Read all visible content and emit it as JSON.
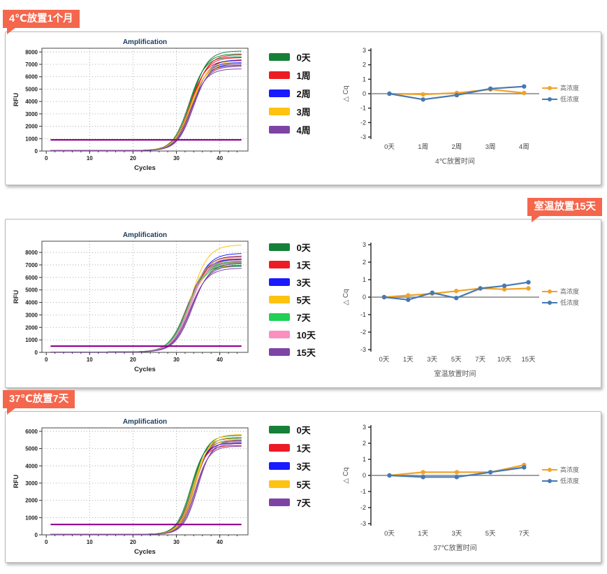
{
  "accent_color": "#f4674d",
  "panels": [
    {
      "badge": {
        "label": "4℃放置1个月",
        "side": "left"
      },
      "amp_chart_index": 0,
      "dcq_chart_index": 1,
      "amp_legend": [
        {
          "label": "0天",
          "color": "#168039"
        },
        {
          "label": "1周",
          "color": "#ed1c24"
        },
        {
          "label": "2周",
          "color": "#1a1aff"
        },
        {
          "label": "3周",
          "color": "#fec211"
        },
        {
          "label": "4周",
          "color": "#7d44a5"
        }
      ]
    },
    {
      "badge": {
        "label": "室温放置15天",
        "side": "right"
      },
      "amp_chart_index": 2,
      "dcq_chart_index": 3,
      "amp_legend": [
        {
          "label": "0天",
          "color": "#168039"
        },
        {
          "label": "1天",
          "color": "#ed1c24"
        },
        {
          "label": "3天",
          "color": "#1a1aff"
        },
        {
          "label": "5天",
          "color": "#fec211"
        },
        {
          "label": "7天",
          "color": "#1fd055"
        },
        {
          "label": "10天",
          "color": "#fa8fc0"
        },
        {
          "label": "15天",
          "color": "#7d44a5"
        }
      ]
    },
    {
      "badge": {
        "label": "37℃放置7天",
        "side": "left"
      },
      "amp_chart_index": 4,
      "dcq_chart_index": 5,
      "amp_legend": [
        {
          "label": "0天",
          "color": "#168039"
        },
        {
          "label": "1天",
          "color": "#ed1c24"
        },
        {
          "label": "3天",
          "color": "#1a1aff"
        },
        {
          "label": "5天",
          "color": "#fec211"
        },
        {
          "label": "7天",
          "color": "#7d44a5"
        }
      ]
    }
  ],
  "chart_data": [
    {
      "role": "amplification",
      "type": "line",
      "title": "Amplification",
      "xlabel": "Cycles",
      "ylabel": "RFU",
      "xlim": [
        -1,
        46.5
      ],
      "xticks": [
        0,
        10,
        20,
        30,
        40
      ],
      "ylim": [
        0,
        8300
      ],
      "yticks": [
        0,
        1000,
        2000,
        3000,
        4000,
        5000,
        6000,
        7000,
        8000
      ],
      "grid": "dashed",
      "baseline": 40,
      "k": 0.55,
      "threshold": {
        "value": 900,
        "color": "#91008f"
      },
      "series": [
        {
          "name": "0天",
          "color": "#168039",
          "midpoint": 33.2,
          "plateau": 7850
        },
        {
          "name": "1周",
          "color": "#ed1c24",
          "midpoint": 33.4,
          "plateau": 7550
        },
        {
          "name": "2周",
          "color": "#1a1aff",
          "midpoint": 33.5,
          "plateau": 7150
        },
        {
          "name": "3周",
          "color": "#fec211",
          "midpoint": 33.3,
          "plateau": 7050
        },
        {
          "name": "4周",
          "color": "#7d44a5",
          "midpoint": 33.6,
          "plateau": 6850
        }
      ]
    },
    {
      "role": "dcq",
      "type": "line",
      "title": "",
      "xlabel": "4℃放置时间",
      "ylabel": "△ Cq",
      "categories": [
        "0天",
        "1周",
        "2周",
        "3周",
        "4周"
      ],
      "ylim": [
        -3,
        3
      ],
      "yticks": [
        -3,
        -2,
        -1,
        0,
        1,
        2,
        3
      ],
      "legend_position": "right",
      "series": [
        {
          "name": "高浓度",
          "color": "#f0a32b",
          "values": [
            0,
            -0.05,
            0.05,
            0.3,
            0.05
          ]
        },
        {
          "name": "低浓度",
          "color": "#4679b2",
          "values": [
            0,
            -0.4,
            -0.1,
            0.35,
            0.5
          ]
        }
      ]
    },
    {
      "role": "amplification",
      "type": "line",
      "title": "Amplification",
      "xlabel": "Cycles",
      "ylabel": "RFU",
      "xlim": [
        -1,
        46.5
      ],
      "xticks": [
        0,
        10,
        20,
        30,
        40
      ],
      "ylim": [
        0,
        8900
      ],
      "yticks": [
        0,
        1000,
        2000,
        3000,
        4000,
        5000,
        6000,
        7000,
        8000
      ],
      "grid": "dashed",
      "baseline": 30,
      "k": 0.5,
      "threshold": {
        "value": 500,
        "color": "#91008f"
      },
      "series": [
        {
          "name": "0天",
          "color": "#168039",
          "midpoint": 32.6,
          "plateau": 7200
        },
        {
          "name": "1天",
          "color": "#ed1c24",
          "midpoint": 32.8,
          "plateau": 7500
        },
        {
          "name": "3天",
          "color": "#1a1aff",
          "midpoint": 33.0,
          "plateau": 7700
        },
        {
          "name": "5天",
          "color": "#fec211",
          "midpoint": 33.0,
          "plateau": 7900,
          "spread": [
            0.88,
            0.97,
            1.09
          ]
        },
        {
          "name": "7天",
          "color": "#1fd055",
          "midpoint": 32.7,
          "plateau": 7100
        },
        {
          "name": "10天",
          "color": "#fa8fc0",
          "midpoint": 33.1,
          "plateau": 7400
        },
        {
          "name": "15天",
          "color": "#7d44a5",
          "midpoint": 33.4,
          "plateau": 6950
        }
      ]
    },
    {
      "role": "dcq",
      "type": "line",
      "title": "",
      "xlabel": "室温放置时间",
      "ylabel": "△ Cq",
      "categories": [
        "0天",
        "1天",
        "3天",
        "5天",
        "7天",
        "10天",
        "15天"
      ],
      "ylim": [
        -3,
        3
      ],
      "yticks": [
        -3,
        -2,
        -1,
        0,
        1,
        2,
        3
      ],
      "legend_position": "right",
      "series": [
        {
          "name": "高浓度",
          "color": "#f0a32b",
          "values": [
            0,
            0.1,
            0.2,
            0.35,
            0.5,
            0.45,
            0.5
          ]
        },
        {
          "name": "低浓度",
          "color": "#4679b2",
          "values": [
            0,
            -0.15,
            0.25,
            -0.05,
            0.5,
            0.65,
            0.85
          ]
        }
      ]
    },
    {
      "role": "amplification",
      "type": "line",
      "title": "Amplification",
      "xlabel": "Cycles",
      "ylabel": "RFU",
      "xlim": [
        -1,
        46.5
      ],
      "xticks": [
        0,
        10,
        20,
        30,
        40
      ],
      "ylim": [
        0,
        6200
      ],
      "yticks": [
        0,
        1000,
        2000,
        3000,
        4000,
        5000,
        6000
      ],
      "grid": "dashed",
      "baseline": 30,
      "k": 0.62,
      "threshold": {
        "value": 600,
        "color": "#91008f"
      },
      "series": [
        {
          "name": "0天",
          "color": "#168039",
          "midpoint": 33.6,
          "plateau": 5600
        },
        {
          "name": "1天",
          "color": "#ed1c24",
          "midpoint": 33.9,
          "plateau": 5350
        },
        {
          "name": "3天",
          "color": "#1a1aff",
          "midpoint": 34.0,
          "plateau": 5500
        },
        {
          "name": "5天",
          "color": "#fec211",
          "midpoint": 34.1,
          "plateau": 5650
        },
        {
          "name": "7天",
          "color": "#7d44a5",
          "midpoint": 34.6,
          "plateau": 5300
        }
      ]
    },
    {
      "role": "dcq",
      "type": "line",
      "title": "",
      "xlabel": "37℃放置时间",
      "ylabel": "△ Cq",
      "categories": [
        "0天",
        "1天",
        "3天",
        "5天",
        "7天"
      ],
      "ylim": [
        -3,
        3
      ],
      "yticks": [
        -3,
        -2,
        -1,
        0,
        1,
        2,
        3
      ],
      "legend_position": "right",
      "series": [
        {
          "name": "高浓度",
          "color": "#f0a32b",
          "values": [
            0,
            0.2,
            0.2,
            0.2,
            0.65
          ]
        },
        {
          "name": "低浓度",
          "color": "#4679b2",
          "values": [
            0,
            -0.1,
            -0.1,
            0.2,
            0.5
          ]
        }
      ]
    }
  ]
}
